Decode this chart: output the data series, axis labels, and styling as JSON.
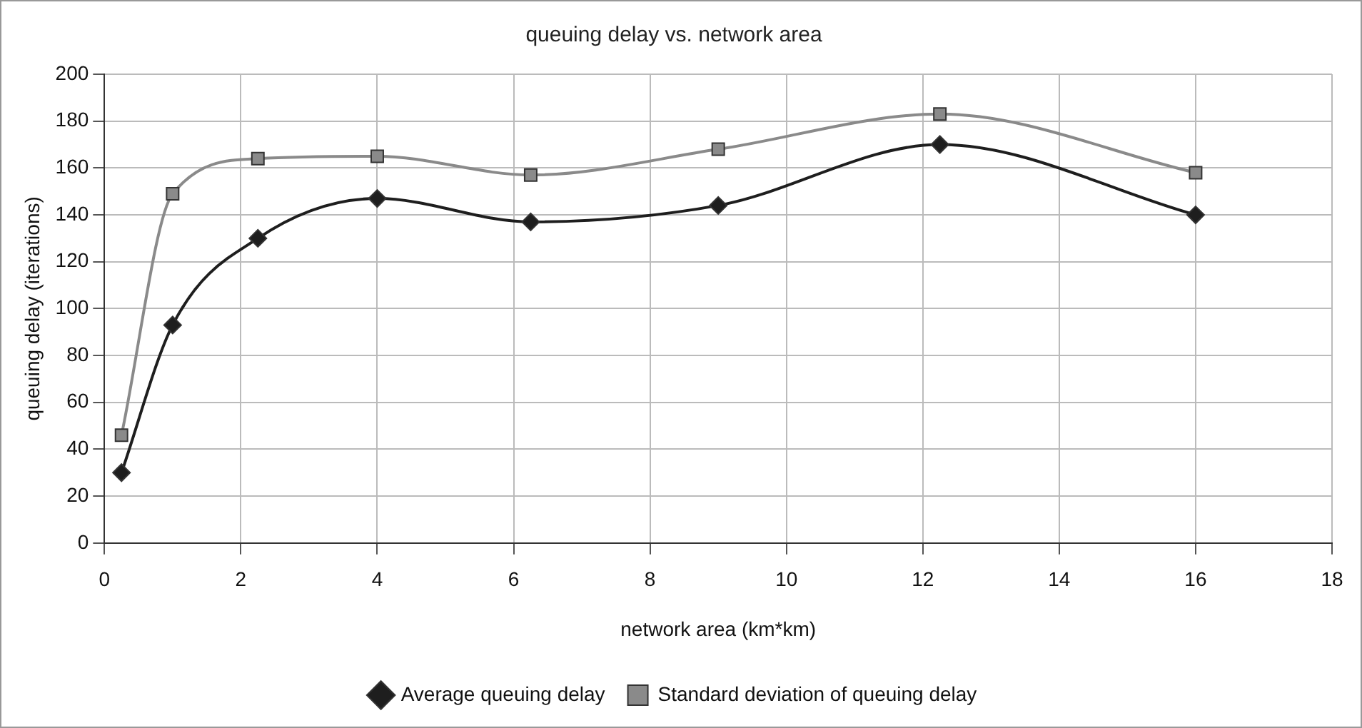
{
  "chart_data": {
    "type": "line",
    "title": "queuing delay vs. network area",
    "xlabel": "network area (km*km)",
    "ylabel": "queuing delay (iterations)",
    "x": [
      0.25,
      1,
      2.25,
      4,
      6.25,
      9,
      12.25,
      16
    ],
    "series": [
      {
        "name": "Average queuing delay",
        "color": "#1e1e1e",
        "marker": "diamond",
        "values": [
          30,
          93,
          130,
          147,
          137,
          144,
          170,
          140
        ]
      },
      {
        "name": "Standard deviation of queuing delay",
        "color": "#8a8a8a",
        "marker": "square",
        "values": [
          46,
          149,
          164,
          165,
          157,
          168,
          183,
          158
        ]
      }
    ],
    "xlim": [
      0,
      18
    ],
    "xticks": [
      0,
      2,
      4,
      6,
      8,
      10,
      12,
      14,
      16,
      18
    ],
    "ylim": [
      0,
      200
    ],
    "yticks": [
      0,
      20,
      40,
      60,
      80,
      100,
      120,
      140,
      160,
      180,
      200
    ],
    "grid": true,
    "legend": "bottom",
    "line_style": "solid"
  }
}
